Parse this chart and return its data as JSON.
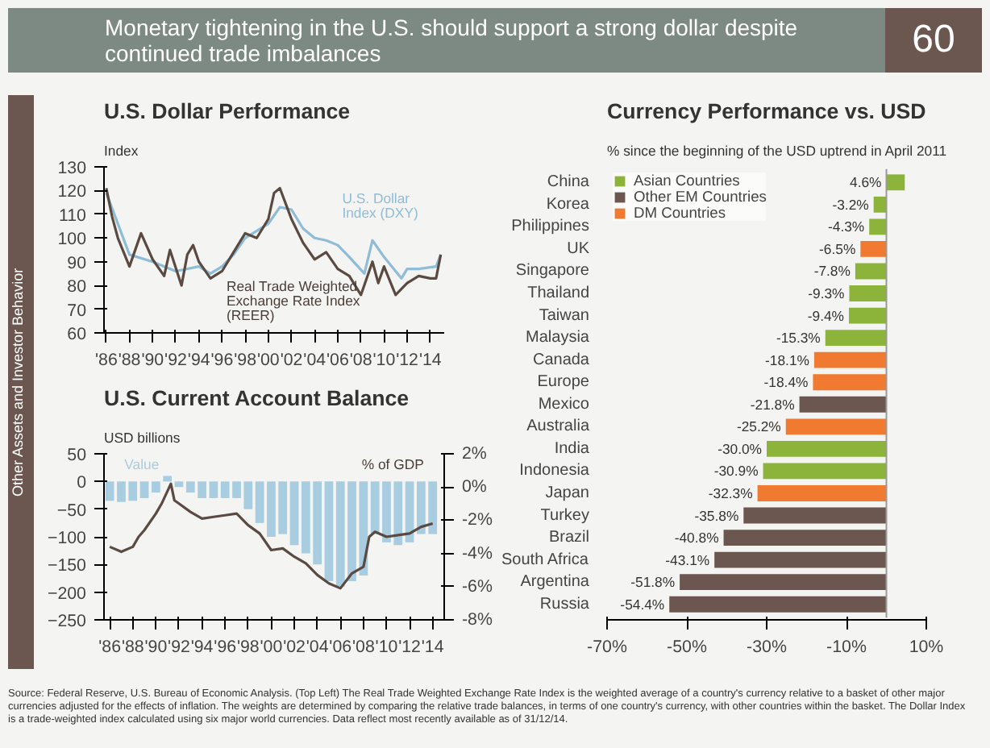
{
  "chart_data": [
    {
      "type": "line",
      "title": "U.S. Dollar Performance",
      "subtitle": "Index",
      "annotations": [
        "Monetary tightening in the U.S. should support a strong dollar despite continued trade imbalances",
        "60",
        "Other Assets and Investor Behavior"
      ],
      "xlim": [
        1985.8,
        2015.2
      ],
      "ylim": [
        60,
        130
      ],
      "yticks": [
        60,
        70,
        80,
        90,
        100,
        110,
        120,
        130
      ],
      "xticks": [
        {
          "value": 1986,
          "label": "'86"
        },
        {
          "value": 1988,
          "label": "'88"
        },
        {
          "value": 1990,
          "label": "'90"
        },
        {
          "value": 1992,
          "label": "'92"
        },
        {
          "value": 1994,
          "label": "'94"
        },
        {
          "value": 1996,
          "label": "'96"
        },
        {
          "value": 1998,
          "label": "'98"
        },
        {
          "value": 2000,
          "label": "'00"
        },
        {
          "value": 2002,
          "label": "'02"
        },
        {
          "value": 2004,
          "label": "'04"
        },
        {
          "value": 2006,
          "label": "'06"
        },
        {
          "value": 2008,
          "label": "'08"
        },
        {
          "value": 2010,
          "label": "'10"
        },
        {
          "value": 2012,
          "label": "'12"
        },
        {
          "value": 2014,
          "label": "'14"
        }
      ],
      "series": [
        {
          "name": "U.S. Dollar Index (DXY)",
          "color": "#8fbcd6",
          "x": [
            1986,
            1988,
            1990,
            1992,
            1994,
            1995,
            1996,
            1997,
            1998,
            2000,
            2001,
            2002,
            2003,
            2004,
            2005,
            2006,
            2007,
            2008.3,
            2009,
            2010,
            2011.5,
            2012,
            2013,
            2014.5,
            2014.9
          ],
          "values": [
            119,
            93,
            90,
            86,
            88,
            85,
            88,
            93,
            100,
            106,
            113,
            112,
            104,
            100,
            99,
            97,
            92,
            85,
            99,
            92,
            83,
            87,
            87,
            88,
            93
          ]
        },
        {
          "name": "Real Trade Weighted Exchange Rate Index (REER)",
          "color": "#5a4a42",
          "x": [
            1986,
            1986.5,
            1987,
            1988,
            1989,
            1990,
            1991,
            1991.5,
            1992.5,
            1993,
            1993.5,
            1994,
            1995,
            1996,
            1997,
            1998,
            1999,
            2000,
            2000.5,
            2001,
            2002,
            2003,
            2004,
            2005,
            2006,
            2007,
            2008,
            2009,
            2009.5,
            2010,
            2011,
            2012,
            2013,
            2014,
            2014.5,
            2014.9
          ],
          "values": [
            121,
            109,
            100,
            88,
            102,
            91,
            84,
            95,
            80,
            93,
            97,
            90,
            83,
            86,
            94,
            102,
            100,
            108,
            119,
            121,
            108,
            98,
            91,
            94,
            87,
            84,
            76,
            90,
            81,
            88,
            76,
            81,
            84,
            83,
            83,
            93
          ]
        }
      ]
    },
    {
      "type": "bar",
      "title": "U.S. Current Account Balance",
      "subtitle": "USD billions",
      "x": [
        1986,
        1987,
        1988,
        1989,
        1990,
        1991,
        1992,
        1993,
        1994,
        1995,
        1996,
        1997,
        1998,
        1999,
        2000,
        2001,
        2002,
        2003,
        2004,
        2005,
        2006,
        2007,
        2008,
        2009,
        2010,
        2011,
        2012,
        2013,
        2014
      ],
      "xlim": [
        1985.5,
        2015
      ],
      "ylim": [
        -250,
        50
      ],
      "yticks": [
        -250,
        -200,
        -150,
        -100,
        -50,
        0,
        50
      ],
      "y2lim": [
        -8,
        2
      ],
      "y2ticks": [
        {
          "value": -8,
          "label": "-8%"
        },
        {
          "value": -6,
          "label": "-6%"
        },
        {
          "value": -4,
          "label": "-4%"
        },
        {
          "value": -2,
          "label": "-2%"
        },
        {
          "value": 0,
          "label": "0%"
        },
        {
          "value": 2,
          "label": "2%"
        }
      ],
      "xticks": [
        {
          "value": 1986,
          "label": "'86"
        },
        {
          "value": 1988,
          "label": "'88"
        },
        {
          "value": 1990,
          "label": "'90"
        },
        {
          "value": 1992,
          "label": "'92"
        },
        {
          "value": 1994,
          "label": "'94"
        },
        {
          "value": 1996,
          "label": "'96"
        },
        {
          "value": 1998,
          "label": "'98"
        },
        {
          "value": 2000,
          "label": "'00"
        },
        {
          "value": 2002,
          "label": "'02"
        },
        {
          "value": 2004,
          "label": "'04"
        },
        {
          "value": 2006,
          "label": "'06"
        },
        {
          "value": 2008,
          "label": "'08"
        },
        {
          "value": 2010,
          "label": "'10"
        },
        {
          "value": 2012,
          "label": "'12"
        },
        {
          "value": 2014,
          "label": "'14"
        }
      ],
      "series": [
        {
          "name": "Value",
          "type": "bar",
          "color": "#a8cce0",
          "values": [
            -35,
            -37,
            -35,
            -30,
            -20,
            10,
            -10,
            -20,
            -30,
            -30,
            -30,
            -30,
            -50,
            -75,
            -100,
            -95,
            -115,
            -130,
            -150,
            -180,
            -190,
            -180,
            -170,
            -95,
            -110,
            -115,
            -110,
            -95,
            -95
          ]
        },
        {
          "name": "% of GDP",
          "type": "line",
          "axis": "y2",
          "color": "#5a4a42",
          "x": [
            1986,
            1987,
            1988,
            1988.5,
            1989,
            1990,
            1990.5,
            1991.3,
            1991.6,
            1992,
            1993,
            1994,
            1995,
            1996,
            1997,
            1998,
            1999,
            2000,
            2001,
            2002,
            2003,
            2004,
            2005,
            2006,
            2007,
            2008,
            2008.5,
            2009,
            2010,
            2011,
            2012,
            2013,
            2014
          ],
          "values": [
            -3.6,
            -3.9,
            -3.6,
            -3.0,
            -2.6,
            -1.6,
            -1.0,
            0.2,
            -0.8,
            -1.0,
            -1.5,
            -1.9,
            -1.8,
            -1.7,
            -1.6,
            -2.3,
            -2.8,
            -3.8,
            -3.7,
            -4.2,
            -4.6,
            -5.3,
            -5.8,
            -6.1,
            -5.2,
            -4.8,
            -3.0,
            -2.7,
            -3.0,
            -2.9,
            -2.8,
            -2.4,
            -2.2
          ]
        }
      ]
    },
    {
      "type": "bar",
      "orientation": "horizontal",
      "title": "Currency Performance vs. USD",
      "subtitle": "% since the beginning of the USD uptrend in April 2011",
      "legend": "top left",
      "annotations": [
        "Source: Federal Reserve, U.S. Bureau of Economic Analysis. (Top Left) The Real Trade Weighted Exchange Rate Index is the weighted average of a country's currency relative to a basket of other major currencies adjusted for the effects of inflation. The weights are determined by comparing the relative trade balances, in terms of one country's currency, with other countries within the basket. The Dollar Index is a trade-weighted index calculated using six major world currencies. Data reflect most recently available as of 31/12/14."
      ],
      "categories": [
        "China",
        "Korea",
        "Philippines",
        "UK",
        "Singapore",
        "Thailand",
        "Taiwan",
        "Malaysia",
        "Canada",
        "Europe",
        "Mexico",
        "Australia",
        "India",
        "Indonesia",
        "Japan",
        "Turkey",
        "Brazil",
        "South Africa",
        "Argentina",
        "Russia"
      ],
      "xlim": [
        -70,
        10
      ],
      "xticks": [
        {
          "value": -70,
          "label": "-70%"
        },
        {
          "value": -50,
          "label": "-50%"
        },
        {
          "value": -30,
          "label": "-30%"
        },
        {
          "value": -10,
          "label": "-10%"
        },
        {
          "value": 10,
          "label": "10%"
        }
      ],
      "series": [
        {
          "name": "Asian Countries",
          "color": "#8cb33a",
          "values": [
            4.6,
            -3.2,
            -4.3,
            null,
            -7.8,
            -9.3,
            -9.4,
            -15.3,
            null,
            null,
            null,
            null,
            -30.0,
            -30.9,
            null,
            null,
            null,
            null,
            null,
            null
          ],
          "value_labels": [
            "4.6%",
            "-3.2%",
            "-4.3%",
            null,
            "-7.8%",
            "-9.3%",
            "-9.4%",
            "-15.3%",
            null,
            null,
            null,
            null,
            "-30.0%",
            "-30.9%",
            null,
            null,
            null,
            null,
            null,
            null
          ]
        },
        {
          "name": "Other EM Countries",
          "color": "#6b5750",
          "values": [
            null,
            null,
            null,
            null,
            null,
            null,
            null,
            null,
            null,
            null,
            -21.8,
            null,
            null,
            null,
            null,
            -35.8,
            -40.8,
            -43.1,
            -51.8,
            -54.4
          ],
          "value_labels": [
            null,
            null,
            null,
            null,
            null,
            null,
            null,
            null,
            null,
            null,
            "-21.8%",
            null,
            null,
            null,
            null,
            "-35.8%",
            "-40.8%",
            "-43.1%",
            "-51.8%",
            "-54.4%"
          ]
        },
        {
          "name": "DM Countries",
          "color": "#f07a30",
          "values": [
            null,
            null,
            null,
            -6.5,
            null,
            null,
            null,
            null,
            -18.1,
            -18.4,
            null,
            -25.2,
            null,
            null,
            -32.3,
            null,
            null,
            null,
            null,
            null
          ],
          "value_labels": [
            null,
            null,
            null,
            "-6.5%",
            null,
            null,
            null,
            null,
            "-18.1%",
            "-18.4%",
            null,
            "-25.2%",
            null,
            null,
            "-32.3%",
            null,
            null,
            null,
            null,
            null
          ]
        }
      ]
    }
  ]
}
